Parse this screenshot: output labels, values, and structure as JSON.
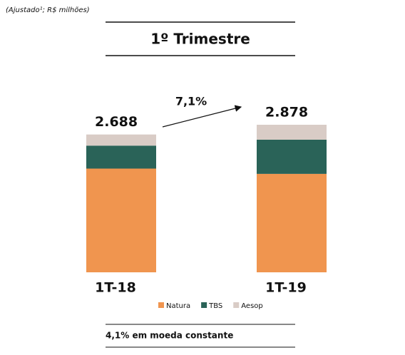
{
  "chart_data": {
    "type": "stacked-bar",
    "note": "(Ajustado¹; R$ milhões)",
    "title": "1º Trimestre",
    "annotation": "7,1%",
    "subtitle": "4,1% em moeda constante",
    "categories": [
      "1T-18",
      "1T-19"
    ],
    "series": [
      {
        "name": "Natura",
        "color": "#f0954f",
        "values": [
          2023,
          1920
        ]
      },
      {
        "name": "TBS",
        "color": "#2a6358",
        "values": [
          448,
          667
        ]
      },
      {
        "name": "Aesop",
        "color": "#d9ccc6",
        "values": [
          217,
          291
        ]
      }
    ],
    "totals": {
      "values": [
        2688,
        2878
      ],
      "value_labels": [
        "2.688",
        "2.878"
      ]
    }
  }
}
